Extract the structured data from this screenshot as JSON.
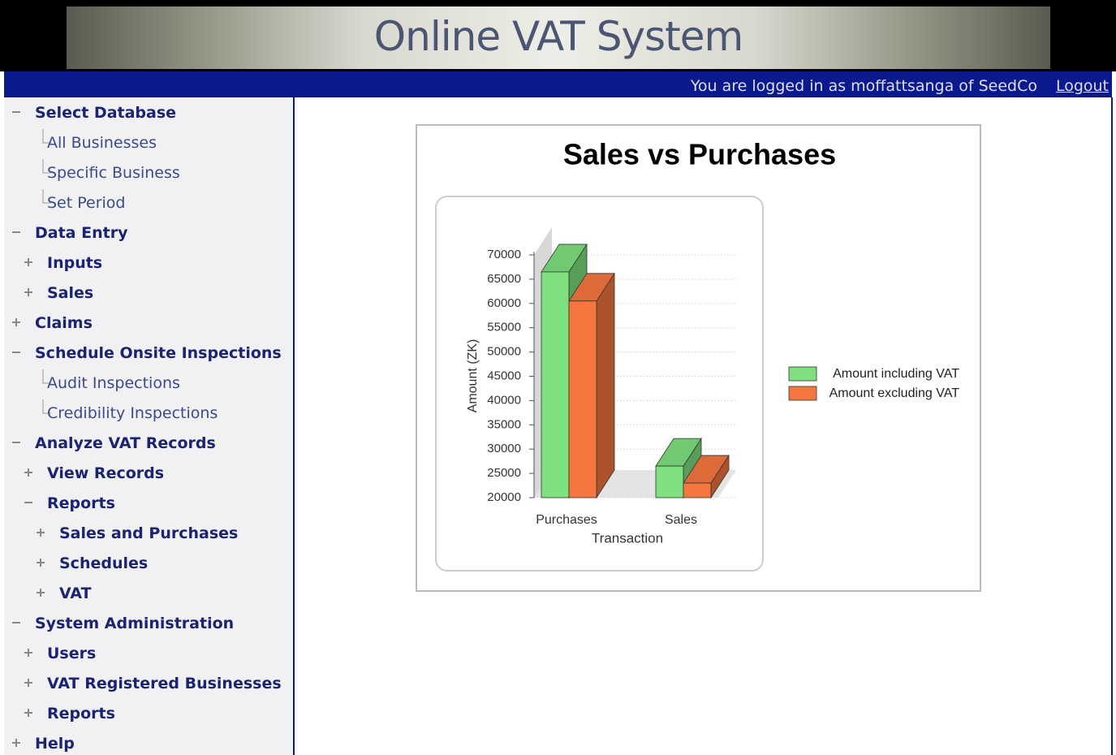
{
  "header": {
    "title": "Online VAT System",
    "login_text": "You are logged in as moffattsanga of SeedCo",
    "logout": "Logout"
  },
  "nav": [
    {
      "label": "Select Database",
      "expanded": true,
      "children": [
        {
          "label": "All Businesses"
        },
        {
          "label": "Specific Business"
        },
        {
          "label": "Set Period"
        }
      ]
    },
    {
      "label": "Data Entry",
      "expanded": true,
      "children": [
        {
          "label": "Inputs",
          "expanded": false
        },
        {
          "label": "Sales",
          "expanded": false
        }
      ]
    },
    {
      "label": "Claims",
      "expanded": false
    },
    {
      "label": "Schedule Onsite Inspections",
      "expanded": true,
      "children": [
        {
          "label": "Audit Inspections"
        },
        {
          "label": "Credibility Inspections"
        }
      ]
    },
    {
      "label": "Analyze VAT Records",
      "expanded": true,
      "children": [
        {
          "label": "View Records",
          "expanded": false
        },
        {
          "label": "Reports",
          "expanded": true,
          "children": [
            {
              "label": "Sales and Purchases",
              "expanded": false
            },
            {
              "label": "Schedules",
              "expanded": false
            },
            {
              "label": "VAT",
              "expanded": false
            }
          ]
        }
      ]
    },
    {
      "label": "System Administration",
      "expanded": true,
      "children": [
        {
          "label": "Users",
          "expanded": false
        },
        {
          "label": "VAT Registered Businesses",
          "expanded": false
        },
        {
          "label": "Reports",
          "expanded": false
        }
      ]
    },
    {
      "label": "Help",
      "expanded": false
    }
  ],
  "chart_data": {
    "type": "bar3d",
    "title": "Sales vs Purchases",
    "categories": [
      "Purchases",
      "Sales"
    ],
    "x_label": "Transaction",
    "y_label": "Amount (ZK)",
    "series": [
      {
        "name": "Amount including VAT",
        "color": "#7ee07e",
        "values": [
          66500,
          26500
        ]
      },
      {
        "name": "Amount excluding VAT",
        "color": "#f5773f",
        "values": [
          60500,
          23000
        ]
      }
    ],
    "ylim": [
      20000,
      70000
    ],
    "yticks": [
      20000,
      25000,
      30000,
      35000,
      40000,
      45000,
      50000,
      55000,
      60000,
      65000,
      70000
    ],
    "grid": true,
    "legend": "right"
  }
}
